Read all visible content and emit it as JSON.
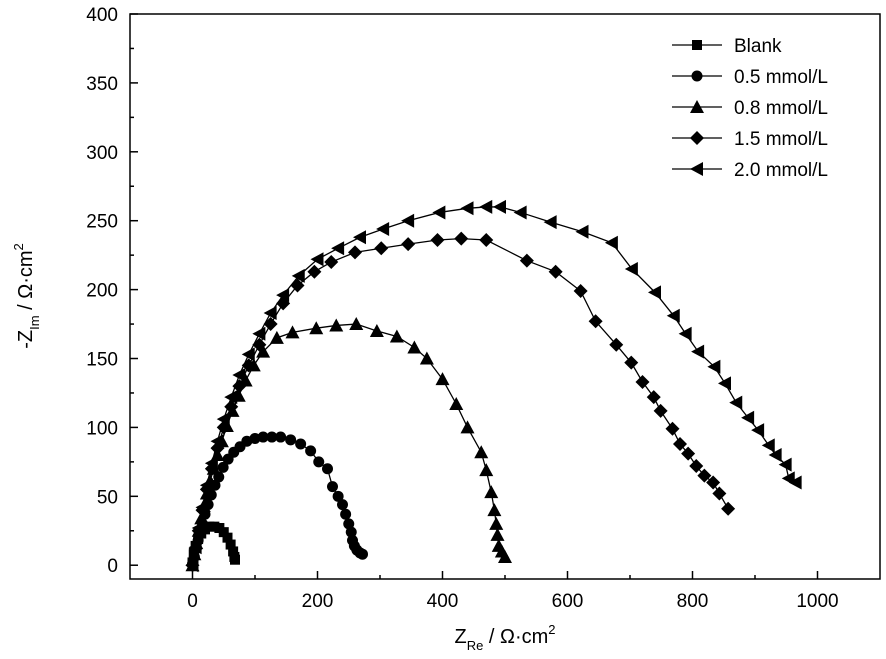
{
  "chart_data": {
    "type": "scatter",
    "title": "",
    "xlabel": {
      "main": "Z",
      "sub": "Re",
      "unit": " / Ω·cm",
      "sup": "2"
    },
    "ylabel": {
      "main": "-Z",
      "sub": "Im",
      "unit": " / Ω·cm",
      "sup": "2"
    },
    "xlim": [
      -100,
      1100
    ],
    "ylim": [
      -10,
      400
    ],
    "xticks": [
      0,
      200,
      400,
      600,
      800,
      1000
    ],
    "xtick_labels": [
      "0",
      "200",
      "400",
      "600",
      "800",
      "1000"
    ],
    "yticks": [
      0,
      50,
      100,
      150,
      200,
      250,
      300,
      350,
      400
    ],
    "ytick_labels": [
      "0",
      "50",
      "100",
      "150",
      "200",
      "250",
      "300",
      "350",
      "400"
    ],
    "grid": false,
    "legend_position": "top-right",
    "series": [
      {
        "name": "Blank",
        "marker": "square",
        "x": [
          0,
          2,
          5,
          9,
          14,
          20,
          27,
          35,
          43,
          50,
          56,
          61,
          65,
          67,
          68
        ],
        "y": [
          2,
          8,
          14,
          19,
          23,
          26,
          28,
          28,
          27,
          24,
          20,
          15,
          10,
          6,
          4
        ]
      },
      {
        "name": "0.5 mmol/L",
        "marker": "circle",
        "x": [
          0,
          3,
          6,
          9,
          12,
          16,
          20,
          25,
          30,
          36,
          42,
          49,
          57,
          66,
          76,
          87,
          100,
          113,
          127,
          141,
          157,
          173,
          189,
          202,
          216,
          224,
          233,
          240,
          245,
          250,
          254,
          256,
          259,
          263,
          268,
          272
        ],
        "y": [
          1,
          6,
          12,
          18,
          24,
          30,
          37,
          44,
          51,
          58,
          64,
          71,
          77,
          82,
          86,
          90,
          92,
          93,
          93,
          93,
          91,
          88,
          83,
          75,
          70,
          57,
          50,
          44,
          37,
          30,
          24,
          18,
          14,
          11,
          9,
          8
        ]
      },
      {
        "name": "0.8 mmol/L",
        "marker": "triangle-up",
        "x": [
          0,
          3,
          6,
          10,
          14,
          18,
          23,
          28,
          34,
          40,
          47,
          55,
          64,
          74,
          85,
          98,
          113,
          135,
          160,
          198,
          230,
          262,
          295,
          327,
          355,
          375,
          400,
          422,
          440,
          462,
          470,
          478,
          483,
          486,
          488,
          490,
          495,
          500
        ],
        "y": [
          0,
          8,
          16,
          25,
          34,
          43,
          52,
          61,
          70,
          80,
          90,
          101,
          112,
          123,
          134,
          145,
          155,
          165,
          169,
          172,
          174,
          175,
          170,
          166,
          158,
          150,
          135,
          117,
          100,
          82,
          69,
          53,
          40,
          30,
          22,
          14,
          10,
          6
        ]
      },
      {
        "name": "1.5 mmol/L",
        "marker": "diamond",
        "x": [
          0,
          5,
          10,
          16,
          23,
          31,
          40,
          50,
          62,
          75,
          90,
          107,
          125,
          145,
          168,
          195,
          222,
          260,
          302,
          345,
          392,
          430,
          470,
          535,
          581,
          621,
          645,
          678,
          702,
          720,
          738,
          749,
          768,
          780,
          793,
          806,
          819,
          833,
          843,
          857
        ],
        "y": [
          0,
          12,
          25,
          40,
          55,
          70,
          85,
          100,
          115,
          130,
          145,
          160,
          175,
          190,
          203,
          213,
          220,
          227,
          230,
          233,
          236,
          237,
          236,
          221,
          213,
          199,
          177,
          160,
          147,
          133,
          122,
          112,
          99,
          88,
          81,
          72,
          65,
          60,
          52,
          41
        ]
      },
      {
        "name": "2.0 mmol/L",
        "marker": "triangle-left",
        "x": [
          0,
          5,
          10,
          16,
          23,
          31,
          40,
          50,
          62,
          75,
          90,
          107,
          125,
          145,
          170,
          200,
          233,
          268,
          305,
          345,
          395,
          440,
          470,
          492,
          525,
          573,
          624,
          671,
          703,
          740,
          770,
          789,
          809,
          835,
          852,
          870,
          889,
          905,
          922,
          933,
          949,
          954,
          965
        ],
        "y": [
          0,
          13,
          27,
          42,
          58,
          74,
          90,
          106,
          122,
          138,
          153,
          168,
          183,
          196,
          210,
          222,
          230,
          238,
          244,
          250,
          256,
          259,
          260,
          260,
          256,
          249,
          242,
          234,
          215,
          198,
          181,
          168,
          155,
          144,
          132,
          118,
          107,
          98,
          87,
          80,
          73,
          63,
          60
        ]
      }
    ]
  }
}
